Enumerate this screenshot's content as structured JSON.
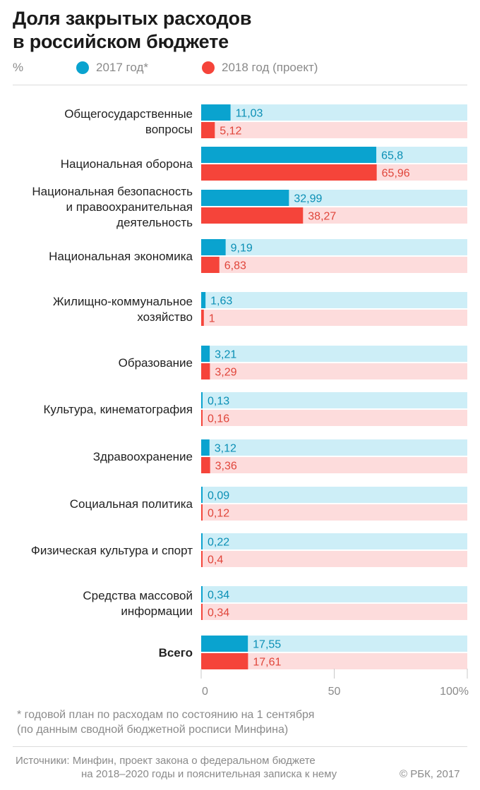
{
  "title_lines": [
    "Доля закрытых расходов",
    "в российском бюджете"
  ],
  "legend": {
    "unit": "%",
    "s2017": "2017 год*",
    "s2018": "2018 год (проект)"
  },
  "colors": {
    "s2017": "#0aa3cf",
    "s2017_track": "#cdeef7",
    "s2017_label": "#0a8fb5",
    "s2018": "#f5443a",
    "s2018_track": "#fddcdc",
    "s2018_label": "#e0453a"
  },
  "chart_data": {
    "type": "bar",
    "orientation": "horizontal",
    "unit": "%",
    "xlim": [
      0,
      100
    ],
    "xticks": [
      0,
      50,
      100
    ],
    "xtick_labels": [
      "0",
      "50",
      "100%"
    ],
    "categories": [
      [
        "Общегосударственные",
        "вопросы"
      ],
      [
        "Национальная оборона"
      ],
      [
        "Национальная безопасность",
        "и правоохранительная",
        "деятельность"
      ],
      [
        "Национальная экономика"
      ],
      [
        "Жилищно-коммунальное",
        "хозяйство"
      ],
      [
        "Образование"
      ],
      [
        "Культура, кинематография"
      ],
      [
        "Здравоохранение"
      ],
      [
        "Социальная политика"
      ],
      [
        "Физическая культура и спорт"
      ],
      [
        "Средства массовой",
        "информации"
      ],
      [
        "Всего"
      ]
    ],
    "series": [
      {
        "name": "2017 год*",
        "values": [
          11.03,
          65.8,
          32.99,
          9.19,
          1.63,
          3.21,
          0.13,
          3.12,
          0.09,
          0.22,
          0.34,
          17.55
        ],
        "labels": [
          "11,03",
          "65,8",
          "32,99",
          "9,19",
          "1,63",
          "3,21",
          "0,13",
          "3,12",
          "0,09",
          "0,22",
          "0,34",
          "17,55"
        ]
      },
      {
        "name": "2018 год (проект)",
        "values": [
          5.12,
          65.96,
          38.27,
          6.83,
          1.0,
          3.29,
          0.16,
          3.36,
          0.12,
          0.4,
          0.34,
          17.61
        ],
        "labels": [
          "5,12",
          "65,96",
          "38,27",
          "6,83",
          "1",
          "3,29",
          "0,16",
          "3,36",
          "0,12",
          "0,4",
          "0,34",
          "17,61"
        ]
      }
    ],
    "grid": false,
    "legend_position": "top-left"
  },
  "footnote_lines": [
    "* годовой план по расходам по состоянию на 1 сентября",
    "(по данным сводной бюджетной росписи Минфина)"
  ],
  "source_lines": [
    "Источники: Минфин, проект закона о федеральном бюджете",
    "на 2018–2020 годы и пояснительная записка к нему"
  ],
  "copyright": "© РБК, 2017"
}
